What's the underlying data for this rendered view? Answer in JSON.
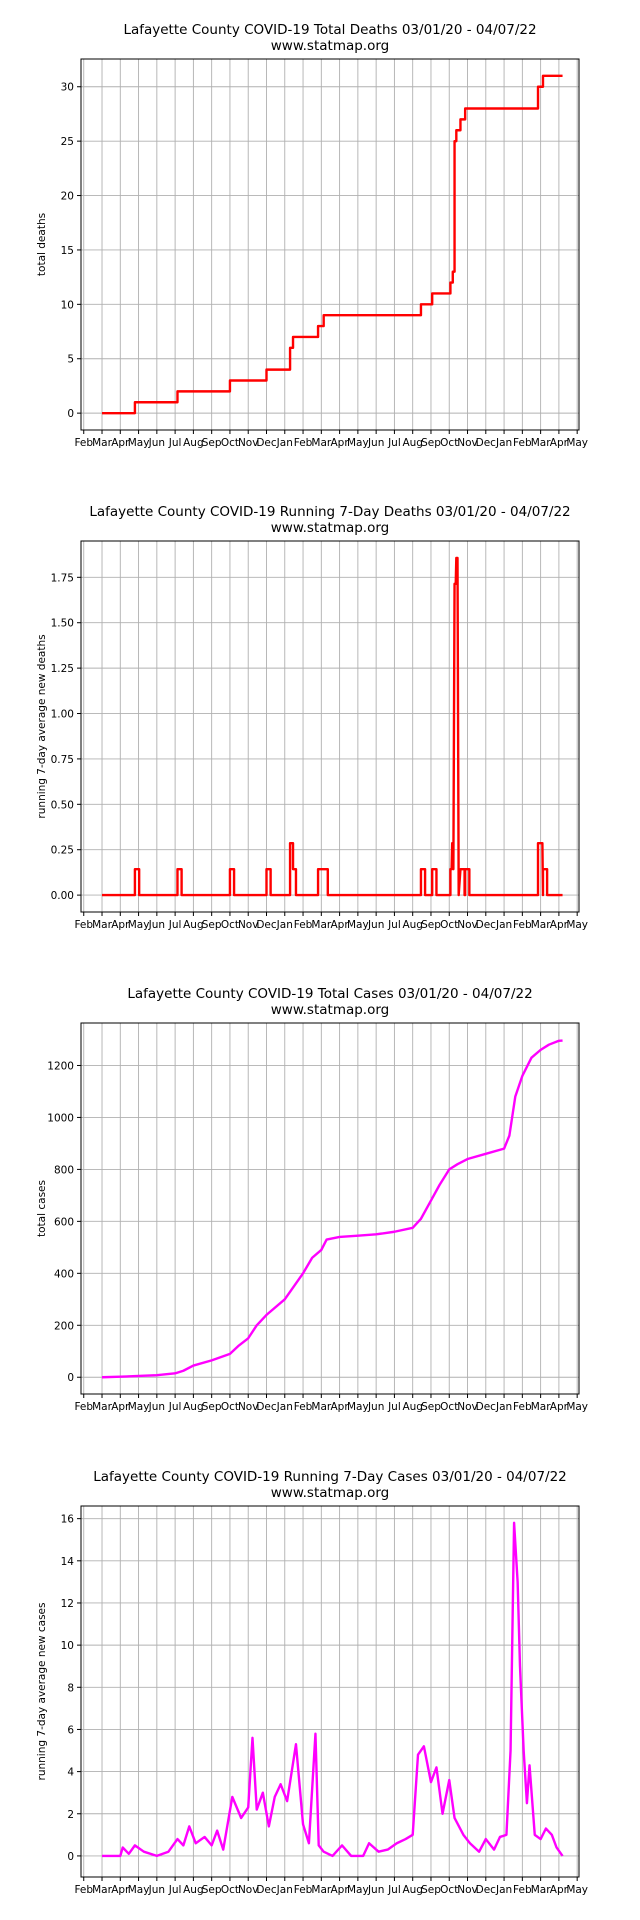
{
  "x_months": [
    "Feb",
    "Mar",
    "Apr",
    "May",
    "Jun",
    "Jul",
    "Aug",
    "Sep",
    "Oct",
    "Nov",
    "Dec",
    "Jan",
    "Feb",
    "Mar",
    "Apr",
    "May",
    "Jun",
    "Jul",
    "Aug",
    "Sep",
    "Oct",
    "Nov",
    "Dec",
    "Jan",
    "Feb",
    "Mar",
    "Apr",
    "May"
  ],
  "colors": {
    "deaths": "#ff0000",
    "cases": "#ff00ff"
  },
  "chart_data": [
    {
      "type": "line",
      "title": "Lafayette County COVID-19 Total Deaths 03/01/20 - 04/07/22",
      "subtitle": "www.statmap.org",
      "ylabel": "total deaths",
      "ylim": [
        -1.55,
        32.55
      ],
      "yticks": [
        0,
        5,
        10,
        15,
        20,
        25,
        30
      ],
      "ytick_labels": [
        "0",
        "5",
        "10",
        "15",
        "20",
        "25",
        "30"
      ],
      "grid": true,
      "color": "deaths",
      "series": [
        {
          "points": [
            [
              "2020-03-01",
              0
            ],
            [
              "2020-04-25",
              0
            ],
            [
              "2020-04-25",
              1
            ],
            [
              "2020-07-05",
              1
            ],
            [
              "2020-07-05",
              2
            ],
            [
              "2020-10-01",
              2
            ],
            [
              "2020-10-01",
              3
            ],
            [
              "2020-12-01",
              3
            ],
            [
              "2020-12-01",
              4
            ],
            [
              "2021-01-10",
              4
            ],
            [
              "2021-01-10",
              6
            ],
            [
              "2021-01-15",
              6
            ],
            [
              "2021-01-15",
              7
            ],
            [
              "2021-02-24",
              7
            ],
            [
              "2021-02-24",
              8
            ],
            [
              "2021-03-05",
              8
            ],
            [
              "2021-03-05",
              9
            ],
            [
              "2021-08-15",
              9
            ],
            [
              "2021-08-15",
              10
            ],
            [
              "2021-09-03",
              10
            ],
            [
              "2021-09-03",
              11
            ],
            [
              "2021-10-03",
              11
            ],
            [
              "2021-10-03",
              12
            ],
            [
              "2021-10-07",
              12
            ],
            [
              "2021-10-07",
              13
            ],
            [
              "2021-10-10",
              13
            ],
            [
              "2021-10-10",
              25
            ],
            [
              "2021-10-13",
              25
            ],
            [
              "2021-10-13",
              26
            ],
            [
              "2021-10-20",
              26
            ],
            [
              "2021-10-20",
              27
            ],
            [
              "2021-10-28",
              27
            ],
            [
              "2021-10-28",
              28
            ],
            [
              "2022-02-25",
              28
            ],
            [
              "2022-02-25",
              30
            ],
            [
              "2022-03-05",
              30
            ],
            [
              "2022-03-05",
              31
            ],
            [
              "2022-04-07",
              31
            ]
          ]
        }
      ]
    },
    {
      "type": "line",
      "title": "Lafayette County COVID-19 Running 7-Day Deaths 03/01/20 - 04/07/22",
      "subtitle": "www.statmap.org",
      "ylabel": "running 7-day average new deaths",
      "ylim": [
        -0.093,
        1.95
      ],
      "yticks": [
        0,
        0.25,
        0.5,
        0.75,
        1.0,
        1.25,
        1.5,
        1.75
      ],
      "ytick_labels": [
        "0.00",
        "0.25",
        "0.50",
        "0.75",
        "1.00",
        "1.25",
        "1.50",
        "1.75"
      ],
      "grid": true,
      "color": "deaths",
      "series": [
        {
          "points": [
            [
              "2020-03-01",
              0
            ],
            [
              "2020-04-25",
              0
            ],
            [
              "2020-04-25",
              0.143
            ],
            [
              "2020-05-02",
              0.143
            ],
            [
              "2020-05-02",
              0
            ],
            [
              "2020-07-05",
              0
            ],
            [
              "2020-07-05",
              0.143
            ],
            [
              "2020-07-12",
              0.143
            ],
            [
              "2020-07-12",
              0
            ],
            [
              "2020-10-01",
              0
            ],
            [
              "2020-10-01",
              0.143
            ],
            [
              "2020-10-08",
              0.143
            ],
            [
              "2020-10-08",
              0
            ],
            [
              "2020-12-01",
              0
            ],
            [
              "2020-12-01",
              0.143
            ],
            [
              "2020-12-08",
              0.143
            ],
            [
              "2020-12-08",
              0
            ],
            [
              "2021-01-10",
              0
            ],
            [
              "2021-01-10",
              0.286
            ],
            [
              "2021-01-15",
              0.286
            ],
            [
              "2021-01-15",
              0.143
            ],
            [
              "2021-01-20",
              0.143
            ],
            [
              "2021-01-20",
              0
            ],
            [
              "2021-02-24",
              0
            ],
            [
              "2021-02-24",
              0.143
            ],
            [
              "2021-03-12",
              0.143
            ],
            [
              "2021-03-12",
              0
            ],
            [
              "2021-08-15",
              0
            ],
            [
              "2021-08-15",
              0.143
            ],
            [
              "2021-08-22",
              0.143
            ],
            [
              "2021-08-22",
              0
            ],
            [
              "2021-09-03",
              0
            ],
            [
              "2021-09-03",
              0.143
            ],
            [
              "2021-09-10",
              0.143
            ],
            [
              "2021-09-10",
              0
            ],
            [
              "2021-10-03",
              0
            ],
            [
              "2021-10-03",
              0.143
            ],
            [
              "2021-10-05",
              0.143
            ],
            [
              "2021-10-06",
              0.286
            ],
            [
              "2021-10-08",
              0.143
            ],
            [
              "2021-10-10",
              1.714
            ],
            [
              "2021-10-12",
              1.714
            ],
            [
              "2021-10-13",
              1.857
            ],
            [
              "2021-10-15",
              1.857
            ],
            [
              "2021-10-17",
              0
            ],
            [
              "2021-10-20",
              0.143
            ],
            [
              "2021-10-27",
              0.143
            ],
            [
              "2021-10-27",
              0
            ],
            [
              "2021-10-28",
              0
            ],
            [
              "2021-10-28",
              0.143
            ],
            [
              "2021-11-04",
              0.143
            ],
            [
              "2021-11-04",
              0
            ],
            [
              "2022-02-25",
              0
            ],
            [
              "2022-02-25",
              0.286
            ],
            [
              "2022-03-04",
              0.286
            ],
            [
              "2022-03-05",
              0
            ],
            [
              "2022-03-05",
              0.143
            ],
            [
              "2022-03-12",
              0.143
            ],
            [
              "2022-03-12",
              0
            ],
            [
              "2022-04-07",
              0
            ]
          ]
        }
      ]
    },
    {
      "type": "line",
      "title": "Lafayette County COVID-19 Total Cases 03/01/20 - 04/07/22",
      "subtitle": "www.statmap.org",
      "ylabel": "total cases",
      "ylim": [
        -64.5,
        1363.5
      ],
      "yticks": [
        0,
        200,
        400,
        600,
        800,
        1000,
        1200
      ],
      "ytick_labels": [
        "0",
        "200",
        "400",
        "600",
        "800",
        "1000",
        "1200"
      ],
      "grid": true,
      "color": "cases",
      "series": [
        {
          "points": [
            [
              "2020-03-01",
              0
            ],
            [
              "2020-04-01",
              2
            ],
            [
              "2020-05-01",
              5
            ],
            [
              "2020-06-01",
              8
            ],
            [
              "2020-07-01",
              15
            ],
            [
              "2020-07-15",
              25
            ],
            [
              "2020-08-01",
              45
            ],
            [
              "2020-09-01",
              65
            ],
            [
              "2020-10-01",
              90
            ],
            [
              "2020-10-15",
              120
            ],
            [
              "2020-11-01",
              150
            ],
            [
              "2020-11-15",
              200
            ],
            [
              "2020-12-01",
              240
            ],
            [
              "2021-01-01",
              300
            ],
            [
              "2021-02-01",
              400
            ],
            [
              "2021-02-15",
              460
            ],
            [
              "2021-03-01",
              490
            ],
            [
              "2021-03-10",
              530
            ],
            [
              "2021-04-01",
              540
            ],
            [
              "2021-05-01",
              545
            ],
            [
              "2021-06-01",
              550
            ],
            [
              "2021-07-01",
              560
            ],
            [
              "2021-08-01",
              575
            ],
            [
              "2021-08-15",
              610
            ],
            [
              "2021-09-01",
              680
            ],
            [
              "2021-09-15",
              740
            ],
            [
              "2021-10-01",
              800
            ],
            [
              "2021-10-15",
              820
            ],
            [
              "2021-11-01",
              840
            ],
            [
              "2021-12-01",
              860
            ],
            [
              "2022-01-01",
              880
            ],
            [
              "2022-01-10",
              930
            ],
            [
              "2022-01-20",
              1080
            ],
            [
              "2022-02-01",
              1160
            ],
            [
              "2022-02-15",
              1230
            ],
            [
              "2022-03-01",
              1260
            ],
            [
              "2022-03-15",
              1280
            ],
            [
              "2022-04-01",
              1295
            ],
            [
              "2022-04-07",
              1296
            ]
          ]
        }
      ]
    },
    {
      "type": "line",
      "title": "Lafayette County COVID-19 Running 7-Day Cases 03/01/20 - 04/07/22",
      "subtitle": "www.statmap.org",
      "ylabel": "running 7-day average new cases",
      "ylim": [
        -1.0,
        16.6
      ],
      "yticks": [
        0,
        2,
        4,
        6,
        8,
        10,
        12,
        14,
        16
      ],
      "ytick_labels": [
        "0",
        "2",
        "4",
        "6",
        "8",
        "10",
        "12",
        "14",
        "16"
      ],
      "grid": true,
      "color": "cases",
      "series": [
        {
          "points": [
            [
              "2020-03-01",
              0
            ],
            [
              "2020-04-01",
              0
            ],
            [
              "2020-04-05",
              0.4
            ],
            [
              "2020-04-15",
              0.1
            ],
            [
              "2020-04-25",
              0.5
            ],
            [
              "2020-05-10",
              0.2
            ],
            [
              "2020-06-01",
              0
            ],
            [
              "2020-06-20",
              0.2
            ],
            [
              "2020-07-05",
              0.8
            ],
            [
              "2020-07-15",
              0.5
            ],
            [
              "2020-07-25",
              1.4
            ],
            [
              "2020-08-05",
              0.6
            ],
            [
              "2020-08-20",
              0.9
            ],
            [
              "2020-09-01",
              0.5
            ],
            [
              "2020-09-10",
              1.2
            ],
            [
              "2020-09-20",
              0.3
            ],
            [
              "2020-10-05",
              2.8
            ],
            [
              "2020-10-20",
              1.8
            ],
            [
              "2020-11-01",
              2.3
            ],
            [
              "2020-11-08",
              5.6
            ],
            [
              "2020-11-15",
              2.2
            ],
            [
              "2020-11-25",
              3.0
            ],
            [
              "2020-12-05",
              1.4
            ],
            [
              "2020-12-15",
              2.8
            ],
            [
              "2020-12-25",
              3.4
            ],
            [
              "2021-01-05",
              2.6
            ],
            [
              "2021-01-20",
              5.3
            ],
            [
              "2021-02-01",
              1.5
            ],
            [
              "2021-02-10",
              0.6
            ],
            [
              "2021-02-20",
              5.8
            ],
            [
              "2021-02-25",
              0.5
            ],
            [
              "2021-03-05",
              0.2
            ],
            [
              "2021-03-20",
              0
            ],
            [
              "2021-04-05",
              0.5
            ],
            [
              "2021-04-20",
              0
            ],
            [
              "2021-05-10",
              0
            ],
            [
              "2021-05-20",
              0.6
            ],
            [
              "2021-06-05",
              0.2
            ],
            [
              "2021-06-20",
              0.3
            ],
            [
              "2021-07-05",
              0.6
            ],
            [
              "2021-07-20",
              0.8
            ],
            [
              "2021-08-01",
              1.0
            ],
            [
              "2021-08-10",
              4.8
            ],
            [
              "2021-08-20",
              5.2
            ],
            [
              "2021-09-01",
              3.5
            ],
            [
              "2021-09-10",
              4.2
            ],
            [
              "2021-09-20",
              2.0
            ],
            [
              "2021-10-01",
              3.6
            ],
            [
              "2021-10-10",
              1.8
            ],
            [
              "2021-10-25",
              1.0
            ],
            [
              "2021-11-05",
              0.6
            ],
            [
              "2021-11-20",
              0.2
            ],
            [
              "2021-12-01",
              0.8
            ],
            [
              "2021-12-15",
              0.3
            ],
            [
              "2021-12-25",
              0.9
            ],
            [
              "2022-01-05",
              1.0
            ],
            [
              "2022-01-12",
              5.0
            ],
            [
              "2022-01-18",
              15.8
            ],
            [
              "2022-01-24",
              13.0
            ],
            [
              "2022-01-28",
              9.0
            ],
            [
              "2022-02-03",
              5.0
            ],
            [
              "2022-02-08",
              2.5
            ],
            [
              "2022-02-12",
              4.3
            ],
            [
              "2022-02-20",
              1.0
            ],
            [
              "2022-03-01",
              0.8
            ],
            [
              "2022-03-10",
              1.3
            ],
            [
              "2022-03-20",
              1.0
            ],
            [
              "2022-03-28",
              0.4
            ],
            [
              "2022-04-07",
              0
            ]
          ]
        }
      ]
    }
  ]
}
